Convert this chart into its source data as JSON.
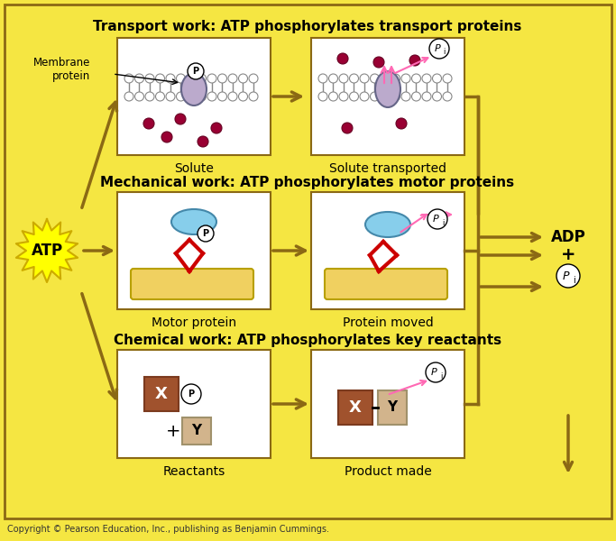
{
  "bg_color": "#F5E642",
  "outer_bg": "#F5E642",
  "title_transport": "Transport work: ATP phosphorylates transport proteins",
  "title_mechanical": "Mechanical work: ATP phosphorylates motor proteins",
  "title_chemical": "Chemical work: ATP phosphorylates key reactants",
  "label_solute": "Solute",
  "label_solute_transported": "Solute transported",
  "label_motor_protein": "Motor protein",
  "label_protein_moved": "Protein moved",
  "label_reactants": "Reactants",
  "label_product_made": "Product made",
  "label_atp": "ATP",
  "label_adp": "ADP\n+\nP",
  "label_membrane_protein": "Membrane\nprotein",
  "copyright": "Copyright © Pearson Education, Inc., publishing as Benjamin Cummings.",
  "arrow_color": "#8B6914",
  "box_bg": "#FFFFFF",
  "membrane_color": "#CCCCFF",
  "solute_color": "#990033",
  "phospho_circle_color": "#FFFFFF",
  "phospho_text": "P",
  "pi_text": "P",
  "x_box_color": "#8B4513",
  "y_box_color": "#D2B48C",
  "motor_blue_color": "#87CEEB",
  "motor_red_color": "#CC0000",
  "filament_color": "#F0E68C",
  "pink_arrow_color": "#FF69B4"
}
